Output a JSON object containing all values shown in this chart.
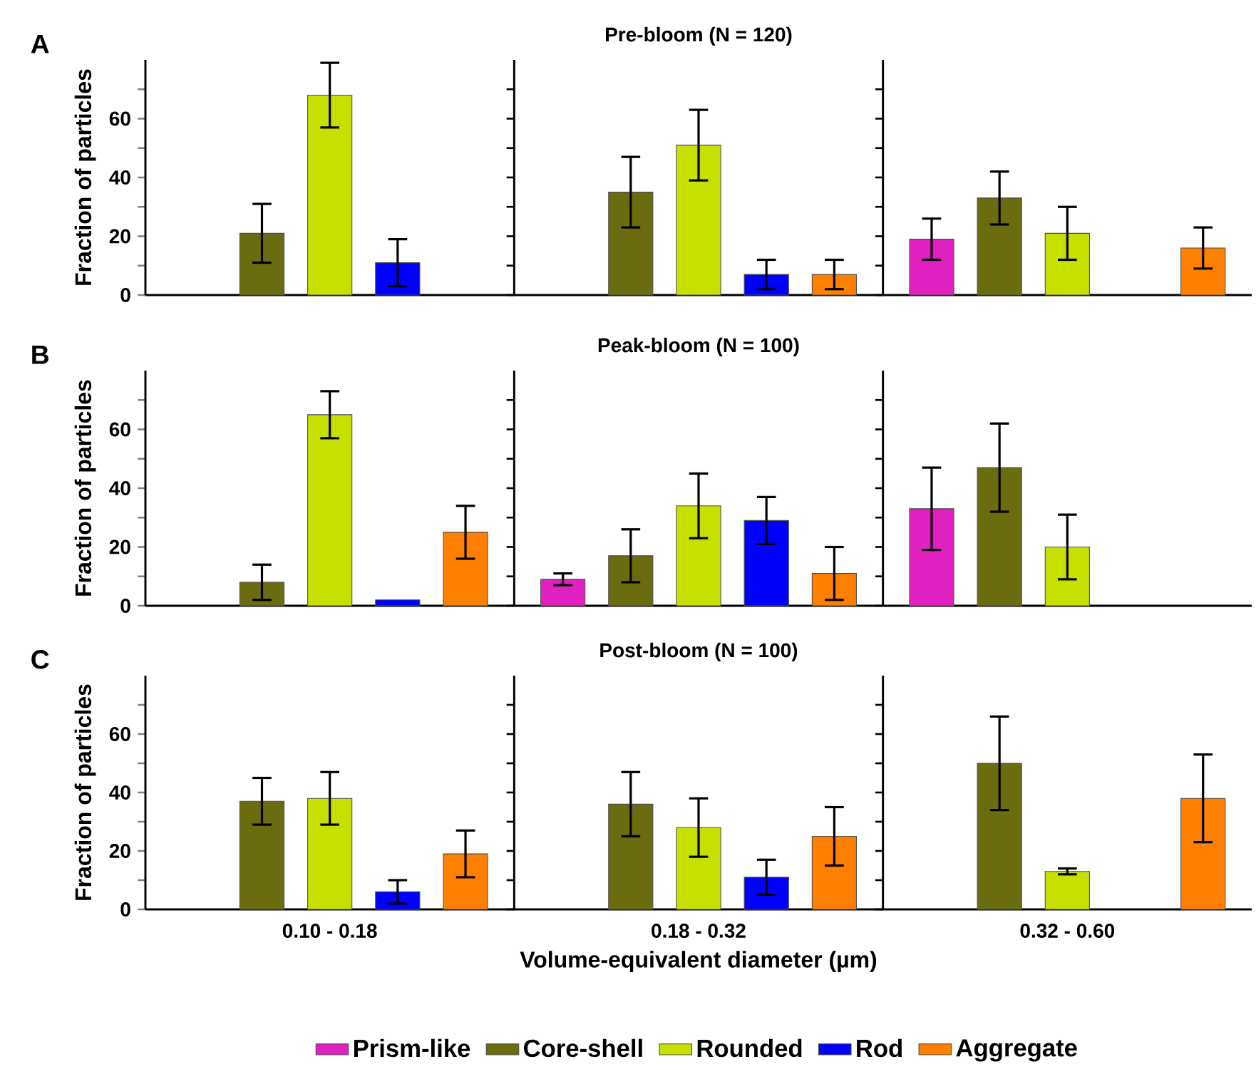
{
  "chart_data": [
    {
      "type": "bar",
      "title": "Pre-bloom (N = 120)",
      "categories": [
        null,
        null,
        null
      ],
      "ylabel": "Fraction of particles",
      "annotations": [
        "A"
      ],
      "ylim": [
        0,
        80
      ],
      "yticks": [
        0,
        {
          "value": 10,
          "label": null
        },
        20,
        {
          "value": 30,
          "label": null
        },
        40,
        {
          "value": 50,
          "label": null
        },
        60,
        {
          "value": 70,
          "label": null
        }
      ],
      "tick_labels": "y",
      "series": [
        {
          "color": "#e020c0",
          "values": [
            null,
            null,
            19
          ],
          "errors": [
            null,
            null,
            7
          ]
        },
        {
          "color": "#6b6b10",
          "values": [
            21,
            35,
            33
          ],
          "errors": [
            10,
            12,
            9
          ]
        },
        {
          "color": "#c8e000",
          "values": [
            68,
            51,
            21
          ],
          "errors": [
            11,
            12,
            9
          ]
        },
        {
          "color": "#0000ff",
          "values": [
            11,
            7,
            null
          ],
          "errors": [
            8,
            5,
            null
          ]
        },
        {
          "color": "#ff8000",
          "values": [
            null,
            7,
            16
          ],
          "errors": [
            null,
            5,
            7
          ]
        }
      ]
    },
    {
      "type": "bar",
      "title": "Peak-bloom (N = 100)",
      "categories": [
        null,
        null,
        null
      ],
      "ylabel": "Fraction of particles",
      "annotations": [
        "B"
      ],
      "ylim": [
        0,
        80
      ],
      "yticks": [
        0,
        {
          "value": 10,
          "label": null
        },
        20,
        {
          "value": 30,
          "label": null
        },
        40,
        {
          "value": 50,
          "label": null
        },
        60,
        {
          "value": 70,
          "label": null
        }
      ],
      "tick_labels": "y",
      "series": [
        {
          "color": "#e020c0",
          "values": [
            null,
            9,
            33
          ],
          "errors": [
            null,
            2,
            14
          ]
        },
        {
          "color": "#6b6b10",
          "values": [
            8,
            17,
            47
          ],
          "errors": [
            6,
            9,
            15
          ]
        },
        {
          "color": "#c8e000",
          "values": [
            65,
            34,
            20
          ],
          "errors": [
            8,
            11,
            11
          ]
        },
        {
          "color": "#0000ff",
          "values": [
            2,
            29,
            null
          ],
          "errors": [
            null,
            8,
            null
          ]
        },
        {
          "color": "#ff8000",
          "values": [
            25,
            11,
            null
          ],
          "errors": [
            9,
            9,
            null
          ]
        }
      ]
    },
    {
      "type": "bar",
      "title": "Post-bloom (N = 100)",
      "categories": [
        "0.10 - 0.18",
        "0.18 - 0.32",
        "0.32 - 0.60"
      ],
      "xlabel": "Volume-equivalent diameter (µm)",
      "ylabel": "Fraction of particles",
      "annotations": [
        "C"
      ],
      "legend": "bottom",
      "ylim": [
        0,
        80
      ],
      "yticks": [
        0,
        {
          "value": 10,
          "label": null
        },
        20,
        {
          "value": 30,
          "label": null
        },
        40,
        {
          "value": 50,
          "label": null
        },
        60,
        {
          "value": 70,
          "label": null
        }
      ],
      "series": [
        {
          "name": "Prism-like",
          "color": "#e020c0",
          "values": [
            null,
            null,
            null
          ],
          "errors": [
            null,
            null,
            null
          ]
        },
        {
          "name": "Core-shell",
          "color": "#6b6b10",
          "values": [
            37,
            36,
            50
          ],
          "errors": [
            8,
            11,
            16
          ]
        },
        {
          "name": "Rounded",
          "color": "#c8e000",
          "values": [
            38,
            28,
            13
          ],
          "errors": [
            9,
            10,
            1
          ]
        },
        {
          "name": "Rod",
          "color": "#0000ff",
          "values": [
            6,
            11,
            null
          ],
          "errors": [
            4,
            6,
            null
          ]
        },
        {
          "name": "Aggregate",
          "color": "#ff8000",
          "values": [
            19,
            25,
            38
          ],
          "errors": [
            8,
            10,
            15
          ]
        }
      ]
    }
  ]
}
